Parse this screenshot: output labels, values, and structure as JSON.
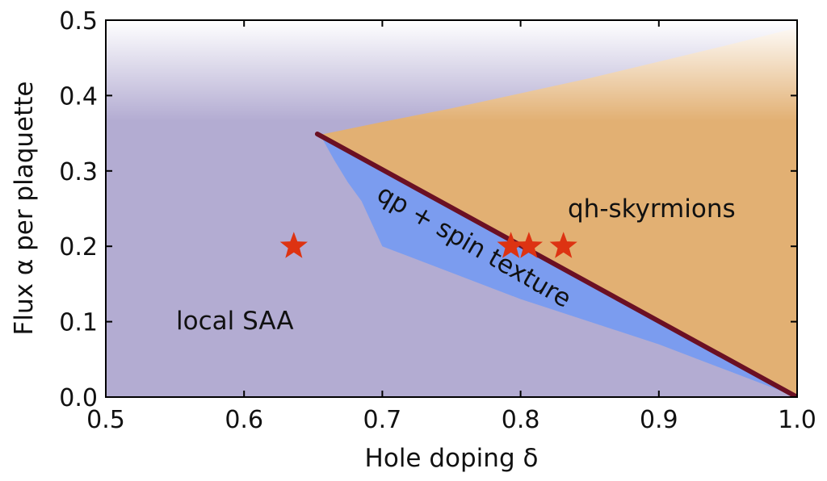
{
  "chart_data": {
    "type": "area",
    "xlabel": "Hole doping δ",
    "ylabel": "Flux α per plaquette",
    "xlim": [
      0.5,
      1.0
    ],
    "ylim": [
      0.0,
      0.5
    ],
    "x_ticks": [
      "0.5",
      "0.6",
      "0.7",
      "0.8",
      "0.9",
      "1.0"
    ],
    "y_ticks": [
      "0.0",
      "0.1",
      "0.2",
      "0.3",
      "0.4",
      "0.5"
    ],
    "grid": false,
    "colors": {
      "local_saa": "#b3acd2",
      "qp_spin_texture": "#7b9cef",
      "qh_skyrmions": "#e2b073",
      "boundary_line": "#6b1023",
      "stars": "#dd3312"
    },
    "regions": {
      "local_saa_label": "local SAA",
      "qp_label": "qp + spin texture",
      "qh_label": "qh-skyrmions",
      "qp_spin_texture_lower_boundary": {
        "x": [
          0.655,
          0.665,
          0.675,
          0.685,
          0.7,
          0.75,
          0.8,
          0.85,
          0.9,
          0.95,
          1.0
        ],
        "y": [
          0.348,
          0.315,
          0.285,
          0.26,
          0.2,
          0.165,
          0.13,
          0.1,
          0.07,
          0.035,
          0.0
        ]
      },
      "qh_skyrmions_upper_boundary": {
        "x": [
          0.655,
          0.7,
          0.75,
          0.8,
          0.85,
          0.9,
          0.95,
          1.0
        ],
        "y": [
          0.348,
          0.365,
          0.383,
          0.403,
          0.423,
          0.445,
          0.467,
          0.49
        ]
      }
    },
    "boundary_line": {
      "x": [
        0.653,
        1.0
      ],
      "y": [
        0.349,
        0.0
      ]
    },
    "stars": {
      "x": [
        0.636,
        0.793,
        0.806,
        0.831
      ],
      "y": [
        0.2,
        0.2,
        0.2,
        0.2
      ]
    }
  }
}
